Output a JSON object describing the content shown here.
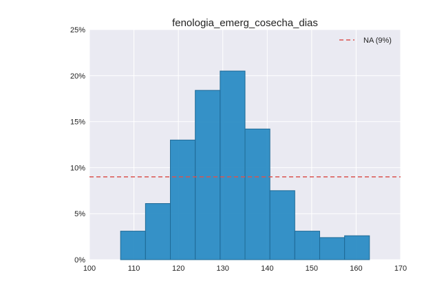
{
  "chart_data": {
    "type": "bar",
    "title": "fenologia_emerg_cosecha_dias",
    "xlabel": "",
    "ylabel": "",
    "xlim": [
      100,
      170
    ],
    "ylim": [
      0,
      25
    ],
    "x_ticks": [
      100,
      110,
      120,
      130,
      140,
      150,
      160,
      170
    ],
    "y_ticks": [
      0,
      5,
      10,
      15,
      20,
      25
    ],
    "y_tick_labels": [
      "0%",
      "5%",
      "10%",
      "15%",
      "20%",
      "25%"
    ],
    "bins": [
      {
        "start": 107.0,
        "end": 112.6,
        "value": 3.1
      },
      {
        "start": 112.6,
        "end": 118.2,
        "value": 6.1
      },
      {
        "start": 118.2,
        "end": 123.8,
        "value": 13.0
      },
      {
        "start": 123.8,
        "end": 129.4,
        "value": 18.4
      },
      {
        "start": 129.4,
        "end": 135.0,
        "value": 20.5
      },
      {
        "start": 135.0,
        "end": 140.6,
        "value": 14.2
      },
      {
        "start": 140.6,
        "end": 146.2,
        "value": 7.5
      },
      {
        "start": 146.2,
        "end": 151.8,
        "value": 3.1
      },
      {
        "start": 151.8,
        "end": 157.4,
        "value": 2.4
      },
      {
        "start": 157.4,
        "end": 163.0,
        "value": 2.6
      }
    ],
    "reference_line": {
      "value": 9,
      "label": "NA (9%)",
      "style": "dashed",
      "color": "#d9534f"
    },
    "grid": true,
    "legend_position": "top-right",
    "colors": {
      "bar": "#2b8cc4",
      "bar_edge": "#1f6a96",
      "plot_background": "#eaeaf2",
      "grid": "#ffffff",
      "text": "#222222"
    }
  }
}
